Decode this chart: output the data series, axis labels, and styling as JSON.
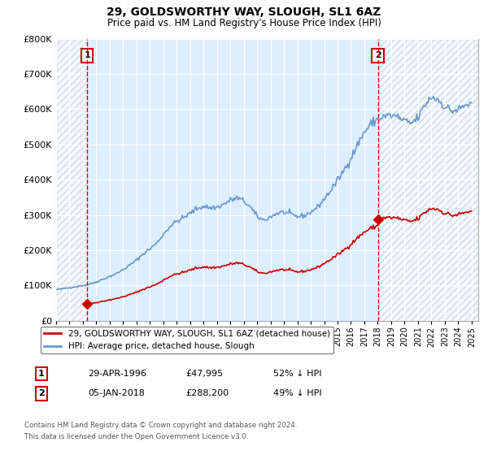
{
  "title": "29, GOLDSWORTHY WAY, SLOUGH, SL1 6AZ",
  "subtitle": "Price paid vs. HM Land Registry's House Price Index (HPI)",
  "legend_line1": "29, GOLDSWORTHY WAY, SLOUGH, SL1 6AZ (detached house)",
  "legend_line2": "HPI: Average price, detached house, Slough",
  "point1_date": "29-APR-1996",
  "point1_price": "£47,995",
  "point1_hpi": "52% ↓ HPI",
  "point1_year": 1996.32,
  "point1_value": 47995,
  "point2_date": "05-JAN-2018",
  "point2_price": "£288,200",
  "point2_hpi": "49% ↓ HPI",
  "point2_year": 2018.01,
  "point2_value": 288200,
  "footnote1": "Contains HM Land Registry data © Crown copyright and database right 2024.",
  "footnote2": "This data is licensed under the Open Government Licence v3.0.",
  "red_color": "#cc0000",
  "blue_color": "#6699cc",
  "plot_bg_color": "#ddeeff",
  "figure_bg_color": "#ffffff",
  "grid_color": "#ffffff",
  "hatch_color": "#bbccdd",
  "ylim": [
    0,
    800000
  ],
  "xlim_start": 1994.0,
  "xlim_end": 2025.5,
  "scale1": 0.485,
  "scale2": 0.487
}
